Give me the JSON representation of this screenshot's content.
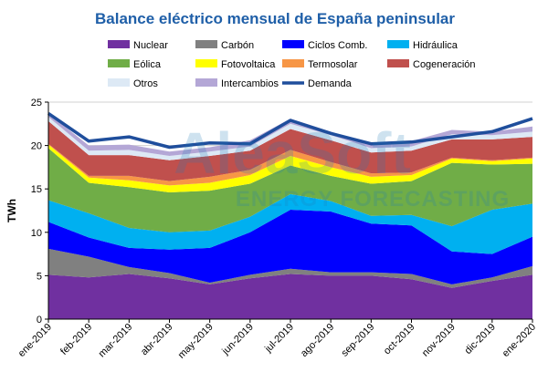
{
  "chart_data": {
    "type": "area",
    "title": "Balance eléctrico mensual de España peninsular",
    "ylabel": "TWh",
    "xlabel": "",
    "ylim": [
      0,
      25
    ],
    "yticks": [
      "0",
      "5",
      "10",
      "15",
      "20",
      "25"
    ],
    "grid": true,
    "legend_position": "top",
    "watermark": [
      "AleaSoft",
      "ENERGY FORECASTING"
    ],
    "categories": [
      "ene-2019",
      "feb-2019",
      "mar-2019",
      "abr-2019",
      "may-2019",
      "jun-2019",
      "jul-2019",
      "ago-2019",
      "sep-2019",
      "oct-2019",
      "nov-2019",
      "dic-2019",
      "ene-2020"
    ],
    "series": [
      {
        "name": "Nuclear",
        "color": "#7030a0",
        "values": [
          5.1,
          4.8,
          5.2,
          4.7,
          4.0,
          4.7,
          5.2,
          5.0,
          5.0,
          4.6,
          3.6,
          4.4,
          5.1
        ]
      },
      {
        "name": "Carbón",
        "color": "#808080",
        "values": [
          3.0,
          2.4,
          0.8,
          0.6,
          0.2,
          0.4,
          0.6,
          0.4,
          0.4,
          0.6,
          0.4,
          0.4,
          1.0
        ]
      },
      {
        "name": "Ciclos Comb.",
        "color": "#0000ff",
        "values": [
          3.1,
          2.2,
          2.2,
          2.7,
          4.0,
          4.9,
          6.8,
          7.0,
          5.6,
          5.6,
          3.8,
          2.7,
          3.4
        ]
      },
      {
        "name": "Hidráulica",
        "color": "#00b0f0",
        "values": [
          2.5,
          2.8,
          2.3,
          2.0,
          2.0,
          1.8,
          1.8,
          1.2,
          0.9,
          1.2,
          2.9,
          5.1,
          3.8
        ]
      },
      {
        "name": "Eólica",
        "color": "#70ad47",
        "values": [
          6.0,
          3.5,
          4.7,
          4.6,
          4.6,
          3.8,
          3.3,
          2.9,
          3.7,
          3.9,
          7.3,
          5.2,
          4.6
        ]
      },
      {
        "name": "Fotovoltaica",
        "color": "#ffff00",
        "values": [
          0.4,
          0.6,
          0.8,
          0.8,
          0.9,
          1.0,
          1.1,
          1.0,
          0.8,
          0.7,
          0.5,
          0.4,
          0.6
        ]
      },
      {
        "name": "Termosolar",
        "color": "#f79646",
        "values": [
          0.1,
          0.2,
          0.5,
          0.5,
          0.7,
          0.6,
          0.7,
          0.6,
          0.4,
          0.3,
          0.1,
          0.1,
          0.1
        ]
      },
      {
        "name": "Cogeneración",
        "color": "#c0504d",
        "values": [
          2.6,
          2.4,
          2.4,
          2.4,
          2.4,
          2.2,
          2.4,
          2.5,
          2.4,
          2.5,
          2.1,
          2.4,
          2.4
        ]
      },
      {
        "name": "Otros",
        "color": "#dde9f5",
        "values": [
          0.5,
          0.5,
          0.6,
          0.5,
          0.5,
          0.5,
          0.6,
          0.6,
          0.5,
          0.5,
          0.6,
          0.5,
          0.6
        ]
      },
      {
        "name": "Intercambios",
        "color": "#b4a7d6",
        "values": [
          0.4,
          0.6,
          0.6,
          0.5,
          0.5,
          0.7,
          0.6,
          0.4,
          0.4,
          0.6,
          0.5,
          0.4,
          0.6
        ]
      }
    ],
    "line_series": {
      "name": "Demanda",
      "color": "#1f4e9c",
      "values": [
        23.7,
        20.5,
        21.0,
        19.8,
        20.3,
        20.2,
        22.9,
        21.4,
        20.2,
        20.4,
        21.0,
        21.6,
        23.1
      ]
    },
    "legend": [
      "Nuclear",
      "Carbón",
      "Ciclos Comb.",
      "Hidráulica",
      "Eólica",
      "Fotovoltaica",
      "Termosolar",
      "Cogeneración",
      "Otros",
      "Intercambios",
      "Demanda"
    ]
  }
}
